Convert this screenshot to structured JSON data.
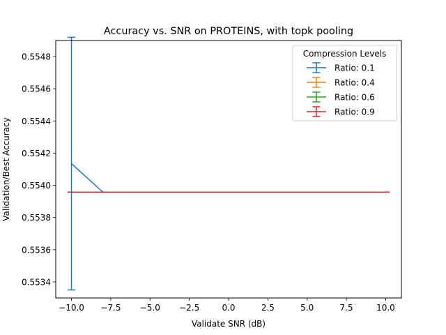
{
  "chart_data": {
    "type": "line",
    "title": "Accuracy vs. SNR on PROTEINS, with topk pooling",
    "xlabel": "Validate SNR (dB)",
    "ylabel": "Validation/Best Accuracy",
    "xlim": [
      -11.0,
      11.0
    ],
    "ylim": [
      0.5533,
      0.5549
    ],
    "x_ticks": [
      -10.0,
      -7.5,
      -5.0,
      -2.5,
      0.0,
      2.5,
      5.0,
      7.5,
      10.0
    ],
    "x_tick_labels": [
      "−10.0",
      "−7.5",
      "−5.0",
      "−2.5",
      "0.0",
      "2.5",
      "5.0",
      "7.5",
      "10.0"
    ],
    "y_ticks": [
      0.5534,
      0.5536,
      0.5538,
      0.554,
      0.5542,
      0.5544,
      0.5546,
      0.5548
    ],
    "y_tick_labels": [
      "0.5534",
      "0.5536",
      "0.5538",
      "0.5540",
      "0.5542",
      "0.5544",
      "0.5546",
      "0.5548"
    ],
    "grid": false,
    "legend": {
      "title": "Compression Levels",
      "placement": "top-right"
    },
    "x": [
      -10,
      -8,
      -6,
      -4,
      -2,
      0,
      2,
      4,
      6,
      8,
      10
    ],
    "series": [
      {
        "name": "Ratio: 0.1",
        "color": "#1f77b4",
        "y": [
          0.554135,
          0.553958,
          0.553958,
          0.553958,
          0.553958,
          0.553958,
          0.553958,
          0.553958,
          0.553958,
          0.553958,
          0.553958
        ],
        "err": [
          0.000785,
          0,
          0,
          0,
          0,
          0,
          0,
          0,
          0,
          0,
          0
        ]
      },
      {
        "name": "Ratio: 0.4",
        "color": "#ff7f0e",
        "y": [
          0.553958,
          0.553958,
          0.553958,
          0.553958,
          0.553958,
          0.553958,
          0.553958,
          0.553958,
          0.553958,
          0.553958,
          0.553958
        ],
        "err": [
          0,
          0,
          0,
          0,
          0,
          0,
          0,
          0,
          0,
          0,
          0
        ]
      },
      {
        "name": "Ratio: 0.6",
        "color": "#2ca02c",
        "y": [
          0.553958,
          0.553958,
          0.553958,
          0.553958,
          0.553958,
          0.553958,
          0.553958,
          0.553958,
          0.553958,
          0.553958,
          0.553958
        ],
        "err": [
          0,
          0,
          0,
          0,
          0,
          0,
          0,
          0,
          0,
          0,
          0
        ]
      },
      {
        "name": "Ratio: 0.9",
        "color": "#d62728",
        "y": [
          0.553958,
          0.553958,
          0.553958,
          0.553958,
          0.553958,
          0.553958,
          0.553958,
          0.553958,
          0.553958,
          0.553958,
          0.553958
        ],
        "err": [
          0,
          0,
          0,
          0,
          0,
          0,
          0,
          0,
          0,
          0,
          0
        ]
      }
    ]
  }
}
